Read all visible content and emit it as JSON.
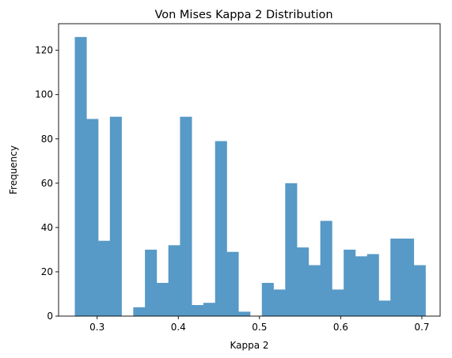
{
  "chart_data": {
    "type": "bar",
    "title": "Von Mises Kappa 2 Distribution",
    "xlabel": "Kappa 2",
    "ylabel": "Frequency",
    "xlim": [
      0.2525,
      0.7225
    ],
    "ylim": [
      0,
      132
    ],
    "x_ticks": [
      0.3,
      0.4,
      0.5,
      0.6,
      0.7
    ],
    "x_tick_labels": [
      "0.3",
      "0.4",
      "0.5",
      "0.6",
      "0.7"
    ],
    "y_ticks": [
      0,
      20,
      40,
      60,
      80,
      100,
      120
    ],
    "y_tick_labels": [
      "0",
      "20",
      "40",
      "60",
      "80",
      "100",
      "120"
    ],
    "bin_start": 0.2725,
    "bin_width": 0.0144,
    "values": [
      126,
      89,
      34,
      90,
      0,
      4,
      30,
      15,
      32,
      90,
      5,
      6,
      79,
      29,
      2,
      0,
      15,
      12,
      60,
      31,
      23,
      43,
      12,
      30,
      27,
      28,
      7,
      35,
      35,
      23
    ],
    "bar_color": "#5799c7",
    "grid": false
  }
}
